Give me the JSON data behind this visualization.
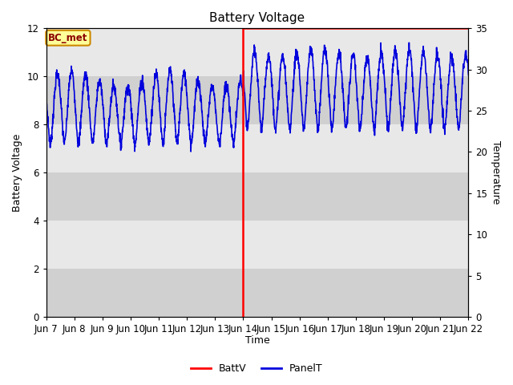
{
  "title": "Battery Voltage",
  "ylabel_left": "Battery Voltage",
  "ylabel_right": "Temperature",
  "xlabel": "Time",
  "ylim_left": [
    0,
    12
  ],
  "ylim_right": [
    0,
    35
  ],
  "x_tick_labels": [
    "Jun 7",
    "Jun 8",
    "Jun 9",
    "Jun 10",
    "Jun 11",
    "Jun 12",
    "Jun 13",
    "Jun 14",
    "Jun 15",
    "Jun 16",
    "Jun 17",
    "Jun 18",
    "Jun 19",
    "Jun 20",
    "Jun 21",
    "Jun 22"
  ],
  "annotation_label": "BC_met",
  "battv_color": "#ff0000",
  "panel_color": "#0000dd",
  "vline_day": 7,
  "background_light": "#e8e8e8",
  "background_dark": "#d0d0d0",
  "title_fontsize": 11,
  "band_edges": [
    0,
    2,
    4,
    6,
    8,
    10,
    12
  ],
  "right_yticks": [
    0,
    5,
    10,
    15,
    20,
    25,
    30,
    35
  ],
  "left_yticks": [
    0,
    2,
    4,
    6,
    8,
    10,
    12
  ]
}
